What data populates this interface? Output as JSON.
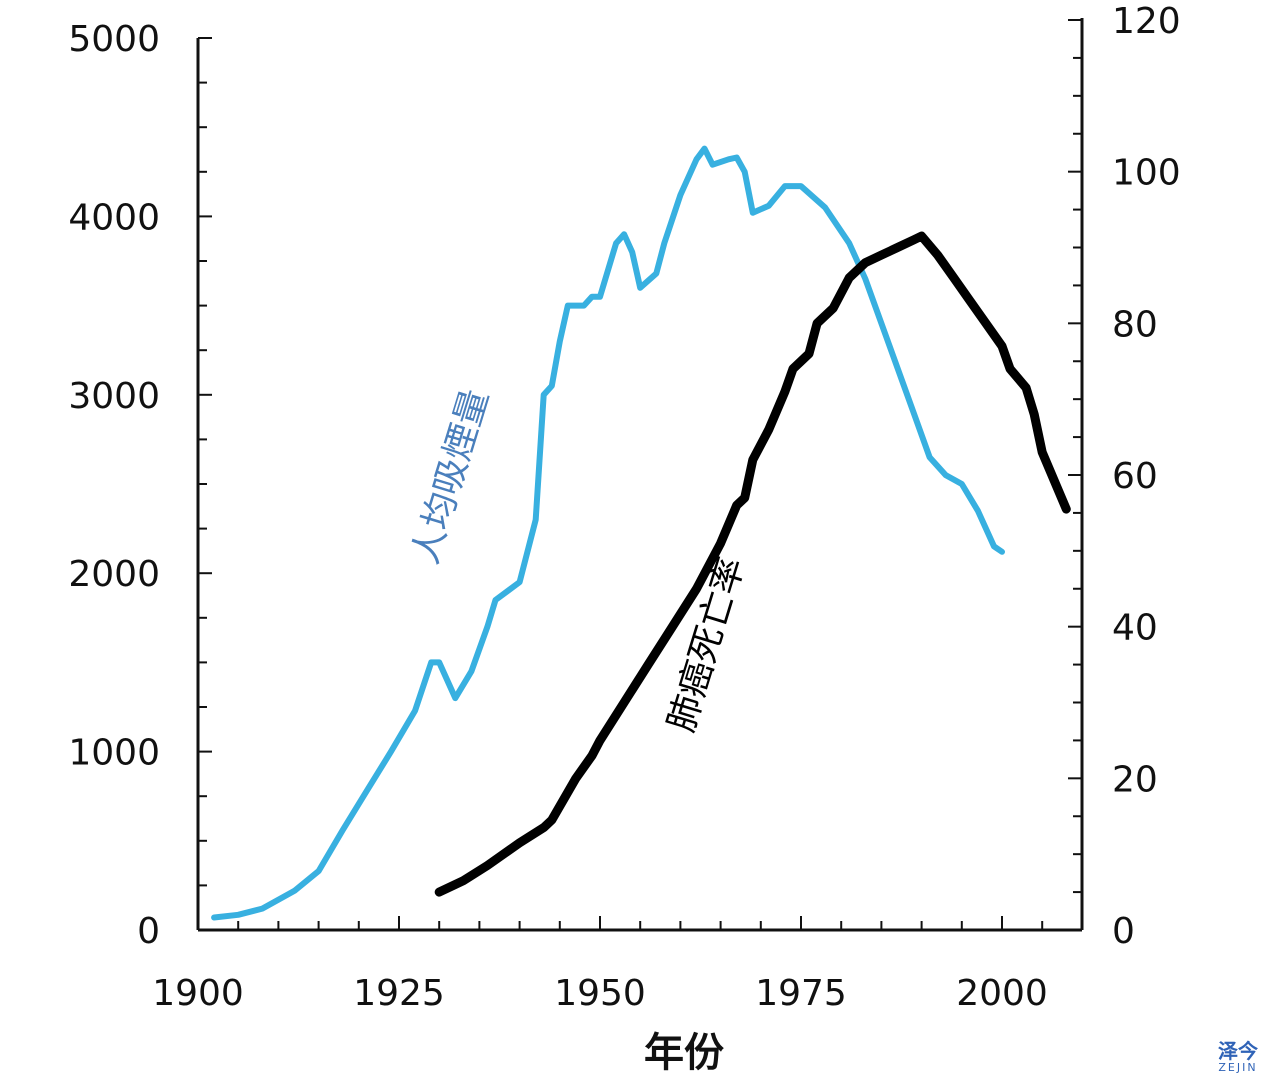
{
  "chart_data": {
    "type": "line",
    "title": "",
    "xlabel": "年份",
    "xlim": [
      1900,
      2010
    ],
    "xticks": [
      1900,
      1925,
      1950,
      1975,
      2000
    ],
    "y_left": {
      "label": "",
      "lim": [
        0,
        5000
      ],
      "ticks": [
        0,
        1000,
        2000,
        3000,
        4000,
        5000
      ]
    },
    "y_right": {
      "label": "",
      "lim": [
        0,
        120
      ],
      "ticks": [
        0,
        20,
        40,
        60,
        80,
        100,
        120
      ]
    },
    "series": [
      {
        "name": "人均吸煙量",
        "axis": "left",
        "color": "#38b0e0",
        "label_color": "#4a7fbc",
        "points": [
          [
            1902,
            70
          ],
          [
            1905,
            85
          ],
          [
            1908,
            120
          ],
          [
            1912,
            220
          ],
          [
            1915,
            330
          ],
          [
            1918,
            560
          ],
          [
            1921,
            780
          ],
          [
            1924,
            1000
          ],
          [
            1927,
            1230
          ],
          [
            1929,
            1500
          ],
          [
            1930,
            1500
          ],
          [
            1932,
            1300
          ],
          [
            1934,
            1450
          ],
          [
            1936,
            1700
          ],
          [
            1937,
            1850
          ],
          [
            1940,
            1950
          ],
          [
            1942,
            2300
          ],
          [
            1943,
            3000
          ],
          [
            1944,
            3050
          ],
          [
            1945,
            3300
          ],
          [
            1946,
            3500
          ],
          [
            1948,
            3500
          ],
          [
            1949,
            3550
          ],
          [
            1950,
            3550
          ],
          [
            1952,
            3850
          ],
          [
            1953,
            3900
          ],
          [
            1954,
            3800
          ],
          [
            1955,
            3600
          ],
          [
            1957,
            3680
          ],
          [
            1958,
            3850
          ],
          [
            1960,
            4120
          ],
          [
            1962,
            4320
          ],
          [
            1963,
            4380
          ],
          [
            1964,
            4290
          ],
          [
            1966,
            4320
          ],
          [
            1967,
            4330
          ],
          [
            1968,
            4250
          ],
          [
            1969,
            4020
          ],
          [
            1971,
            4060
          ],
          [
            1973,
            4170
          ],
          [
            1975,
            4170
          ],
          [
            1978,
            4050
          ],
          [
            1981,
            3850
          ],
          [
            1983,
            3650
          ],
          [
            1985,
            3400
          ],
          [
            1987,
            3150
          ],
          [
            1989,
            2900
          ],
          [
            1991,
            2650
          ],
          [
            1993,
            2550
          ],
          [
            1995,
            2500
          ],
          [
            1997,
            2350
          ],
          [
            1999,
            2150
          ],
          [
            2000,
            2120
          ]
        ]
      },
      {
        "name": "肺癌死亡率",
        "axis": "right",
        "color": "#000000",
        "label_color": "#000000",
        "points": [
          [
            1930,
            5
          ],
          [
            1933,
            6.5
          ],
          [
            1936,
            8.5
          ],
          [
            1940,
            11.5
          ],
          [
            1943,
            13.5
          ],
          [
            1944,
            14.5
          ],
          [
            1947,
            20
          ],
          [
            1949,
            23
          ],
          [
            1950,
            25
          ],
          [
            1953,
            30
          ],
          [
            1956,
            35
          ],
          [
            1959,
            40
          ],
          [
            1962,
            45
          ],
          [
            1965,
            51
          ],
          [
            1967,
            56
          ],
          [
            1968,
            57
          ],
          [
            1969,
            62
          ],
          [
            1971,
            66
          ],
          [
            1973,
            71
          ],
          [
            1974,
            74
          ],
          [
            1976,
            76
          ],
          [
            1977,
            80
          ],
          [
            1979,
            82
          ],
          [
            1981,
            86
          ],
          [
            1983,
            88
          ],
          [
            1985,
            89
          ],
          [
            1987,
            90
          ],
          [
            1989,
            91
          ],
          [
            1990,
            91.5
          ],
          [
            1992,
            89
          ],
          [
            1994,
            86
          ],
          [
            1996,
            83
          ],
          [
            1998,
            80
          ],
          [
            2000,
            77
          ],
          [
            2001,
            74
          ],
          [
            2003,
            71.5
          ],
          [
            2004,
            68
          ],
          [
            2005,
            63
          ],
          [
            2007,
            58
          ],
          [
            2008,
            55.5
          ]
        ]
      }
    ]
  },
  "watermark": {
    "cn": "泽今",
    "en": "ZEJIN"
  }
}
